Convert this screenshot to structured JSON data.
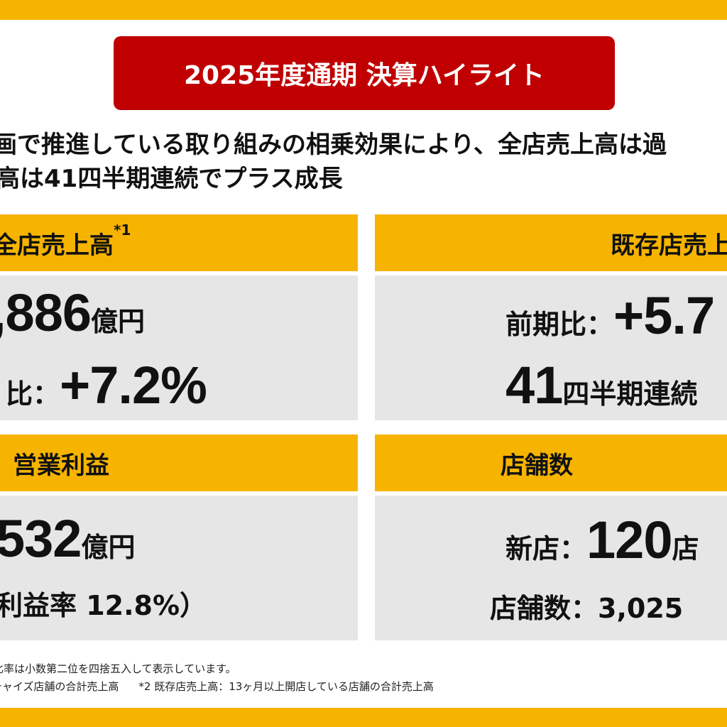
{
  "title": "2025年度通期 決算ハイライト",
  "lead_lines": [
    "画で推進している取り組みの相乗効果により、全店売上高は過",
    "高は41四半期連続でプラス成長"
  ],
  "panels": {
    "sales": {
      "heading": "全店売上高",
      "heading_note": "*1",
      "value": ",886",
      "value_unit": "億円",
      "change_label": "比：",
      "change_value": "+7.2%"
    },
    "existing": {
      "heading": "既存店売上高",
      "change_label": "前期比：",
      "change_value": "+5.7",
      "streak_value": "41",
      "streak_text": "四半期連続"
    },
    "profit": {
      "heading": "営業利益",
      "value": "532",
      "value_unit": "億円",
      "margin_text": "利益率 12.8%）"
    },
    "stores": {
      "heading": "店舗数",
      "new_label": "新店：",
      "new_value": "120",
      "new_unit": "店",
      "total_label": "店舗数：",
      "total_value": "3,025"
    }
  },
  "notes": {
    "line1": "比率は小数第二位を四捨五入して表示しています。",
    "line2a": "チャイズ店舗の合計売上高",
    "line2b": "*2 既存店売上高：13ヶ月以上開店している店舗の合計売上高"
  },
  "colors": {
    "accent_yellow": "#f6b400",
    "title_red": "#c00000",
    "panel_gray": "#e6e6e6"
  }
}
